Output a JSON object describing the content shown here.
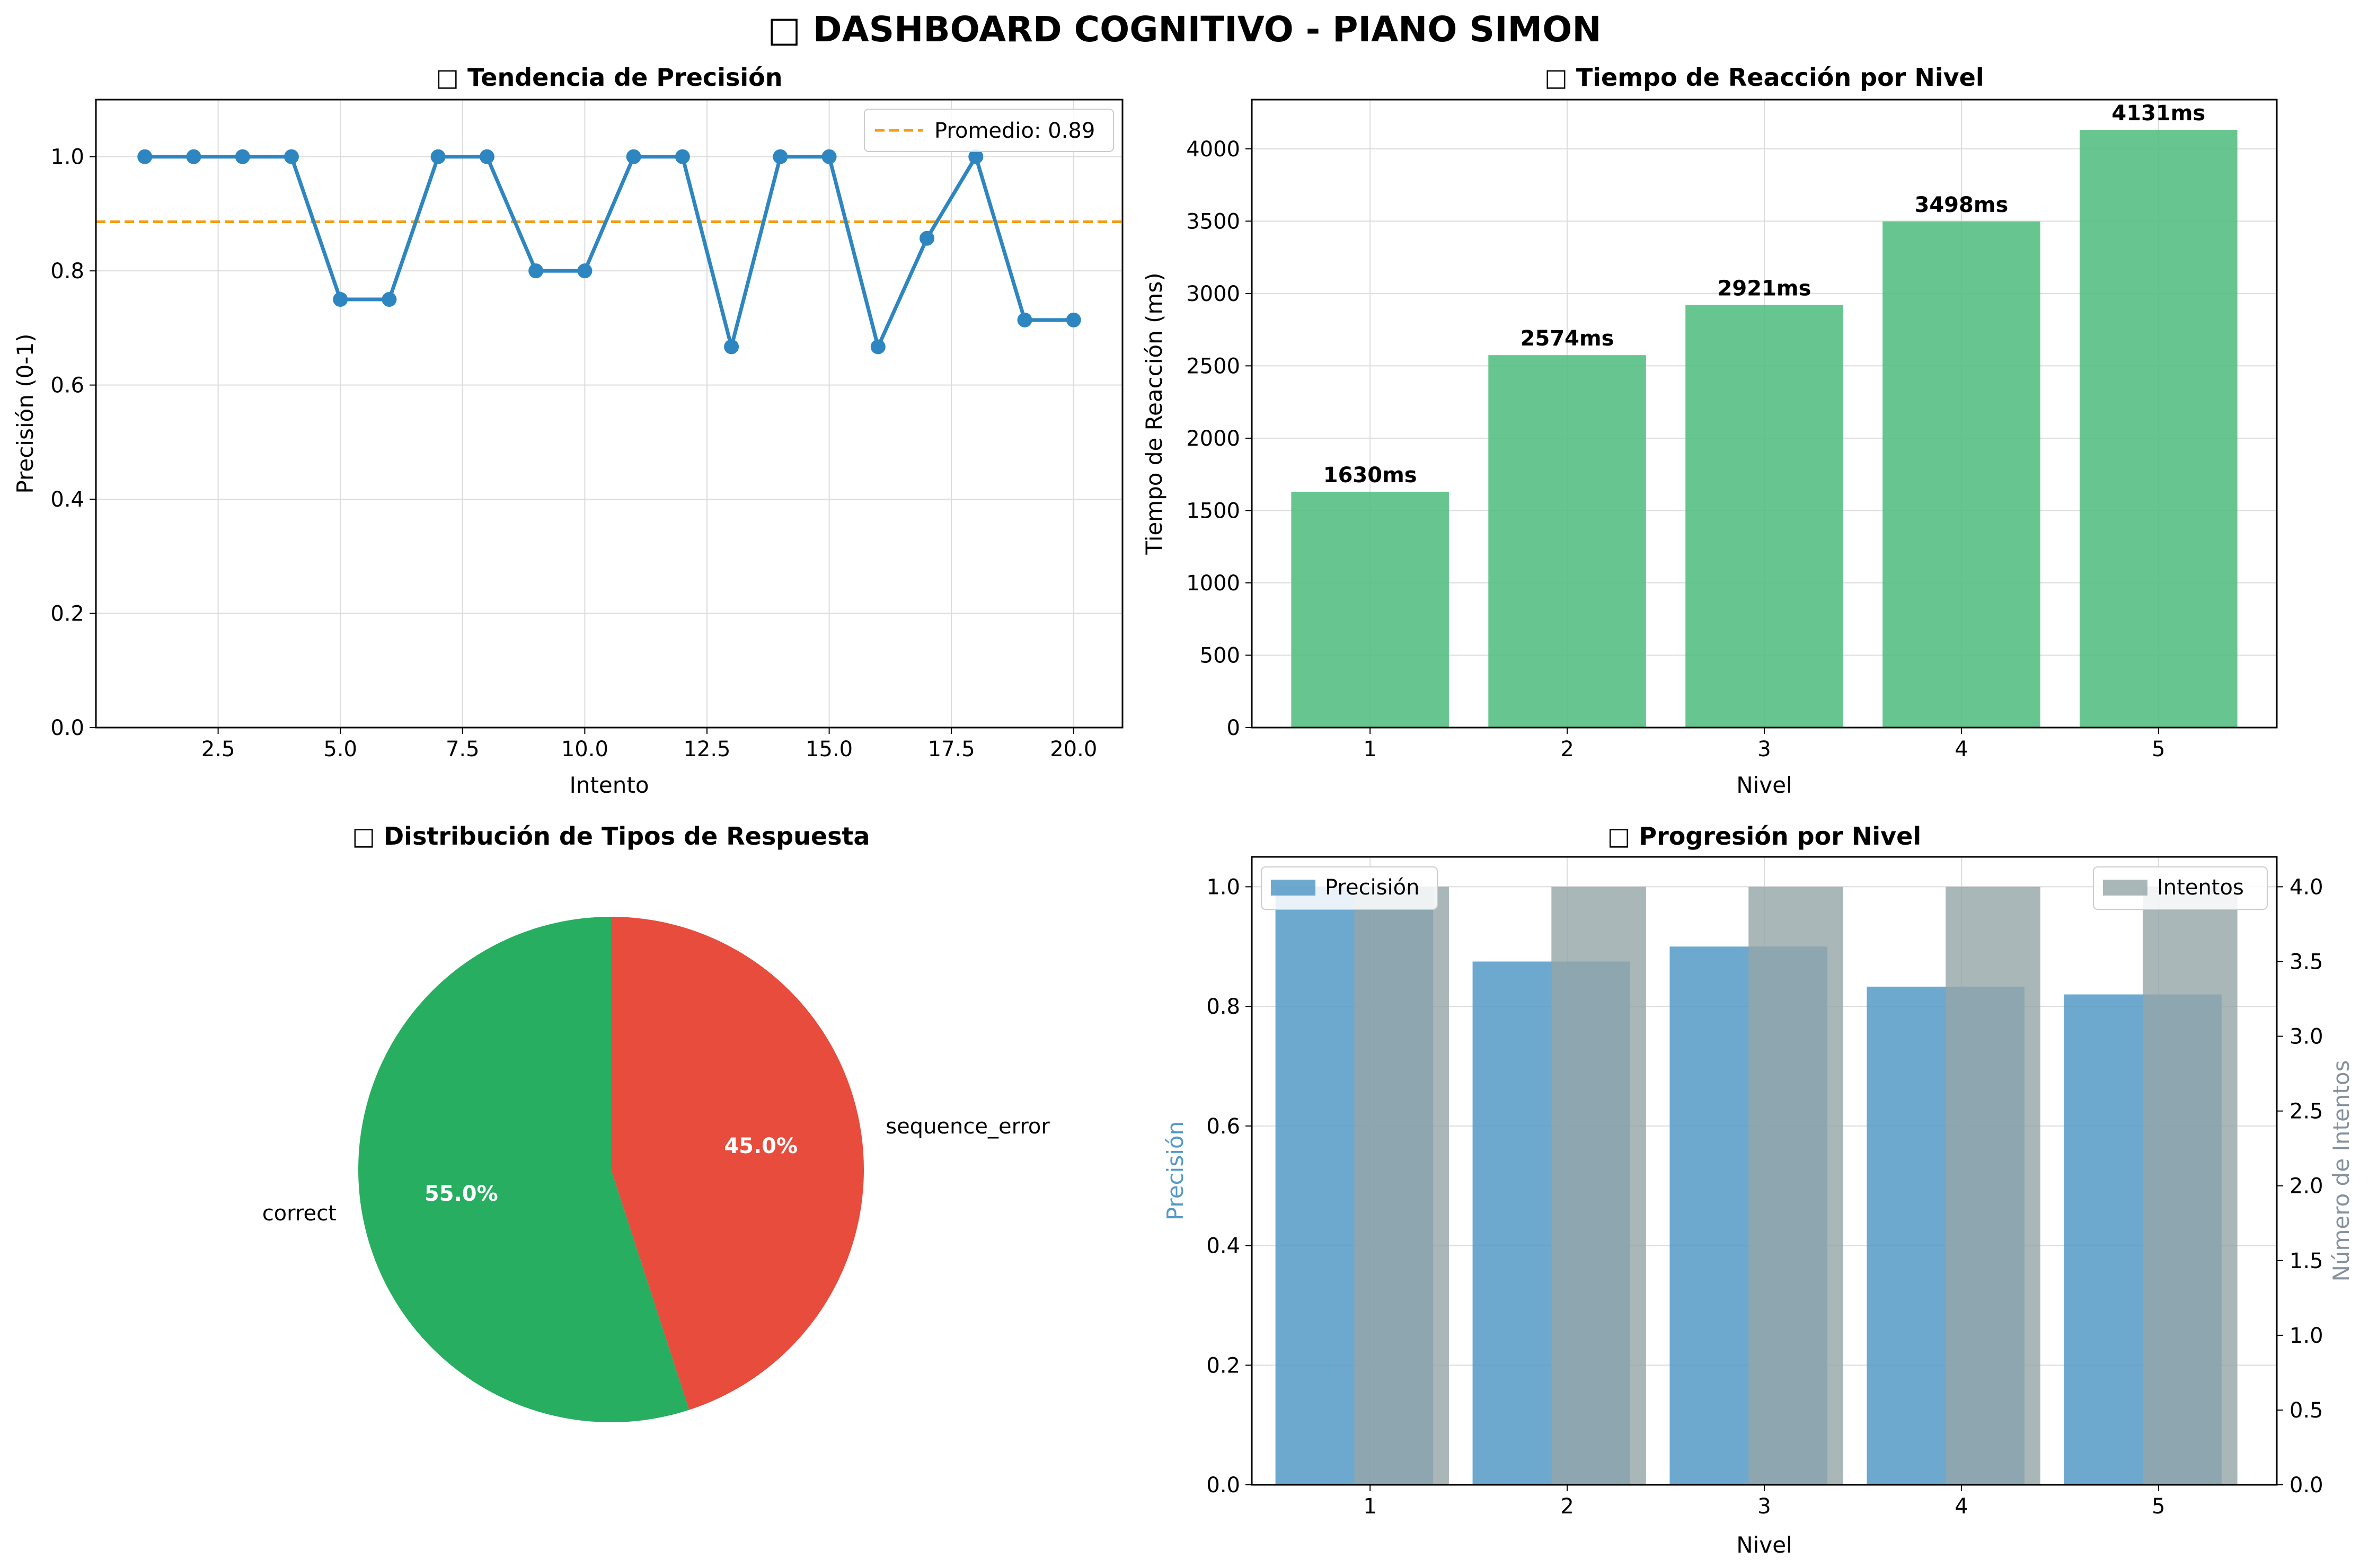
{
  "suptitle": "□ DASHBOARD COGNITIVO - PIANO SIMON",
  "colors": {
    "line": "#2e86c1",
    "mean": "#f39c12",
    "rt_bar": "#52be80",
    "correct": "#27ae60",
    "error": "#e74c3c",
    "prec_bar": "#5499c7",
    "attempts_bar": "#95a5a6",
    "attempts_axis": "#85929e",
    "grid": "#dcdcdc"
  },
  "chart_data": [
    {
      "id": "accuracy",
      "type": "line",
      "title": "□ Tendencia de Precisión",
      "xlabel": "Intento",
      "ylabel": "Precisión (0-1)",
      "xlim": [
        0,
        21
      ],
      "ylim": [
        0,
        1.1
      ],
      "xticks": [
        "2.5",
        "5.0",
        "7.5",
        "10.0",
        "12.5",
        "15.0",
        "17.5",
        "20.0"
      ],
      "yticks": [
        "0.0",
        "0.2",
        "0.4",
        "0.6",
        "0.8",
        "1.0"
      ],
      "x": [
        1,
        2,
        3,
        4,
        5,
        6,
        7,
        8,
        9,
        10,
        11,
        12,
        13,
        14,
        15,
        16,
        17,
        18,
        19,
        20
      ],
      "y": [
        1.0,
        1.0,
        1.0,
        1.0,
        0.75,
        0.75,
        1.0,
        1.0,
        0.8,
        0.8,
        1.0,
        1.0,
        0.667,
        1.0,
        1.0,
        0.667,
        0.857,
        1.0,
        0.714,
        0.714
      ],
      "mean": 0.886,
      "legend": "Promedio: 0.89",
      "grid": true
    },
    {
      "id": "reaction",
      "type": "bar",
      "title": "□ Tiempo de Reacción por Nivel",
      "xlabel": "Nivel",
      "ylabel": "Tiempo de Reacción (ms)",
      "categories": [
        "1",
        "2",
        "3",
        "4",
        "5"
      ],
      "values": [
        1630,
        2574,
        2921,
        3498,
        4131
      ],
      "labels": [
        "1630ms",
        "2574ms",
        "2921ms",
        "3498ms",
        "4131ms"
      ],
      "ylim": [
        0,
        4340
      ],
      "yticks": [
        "0",
        "500",
        "1000",
        "1500",
        "2000",
        "2500",
        "3000",
        "3500",
        "4000"
      ],
      "grid": true
    },
    {
      "id": "distribution",
      "type": "pie",
      "title": "□ Distribución de Tipos de Respuesta",
      "slices": [
        {
          "label": "correct",
          "value": 55.0,
          "pct": "55.0%"
        },
        {
          "label": "sequence_error",
          "value": 45.0,
          "pct": "45.0%"
        }
      ]
    },
    {
      "id": "progression",
      "type": "bar",
      "title": "□ Progresión por Nivel",
      "xlabel": "Nivel",
      "ylabel": "Precisión",
      "ylabel_right": "Número de Intentos",
      "categories": [
        "1",
        "2",
        "3",
        "4",
        "5"
      ],
      "series": [
        {
          "name": "Precisión",
          "values": [
            1.0,
            0.875,
            0.9,
            0.833,
            0.82
          ]
        },
        {
          "name": "Intentos",
          "values": [
            4,
            4,
            4,
            4,
            4
          ]
        }
      ],
      "ylim": [
        0,
        1.05
      ],
      "ylim_right": [
        0,
        4.2
      ],
      "yticks": [
        "0.0",
        "0.2",
        "0.4",
        "0.6",
        "0.8",
        "1.0"
      ],
      "yticks_right": [
        "0.0",
        "0.5",
        "1.0",
        "1.5",
        "2.0",
        "2.5",
        "3.0",
        "3.5",
        "4.0"
      ],
      "grid": true
    }
  ]
}
